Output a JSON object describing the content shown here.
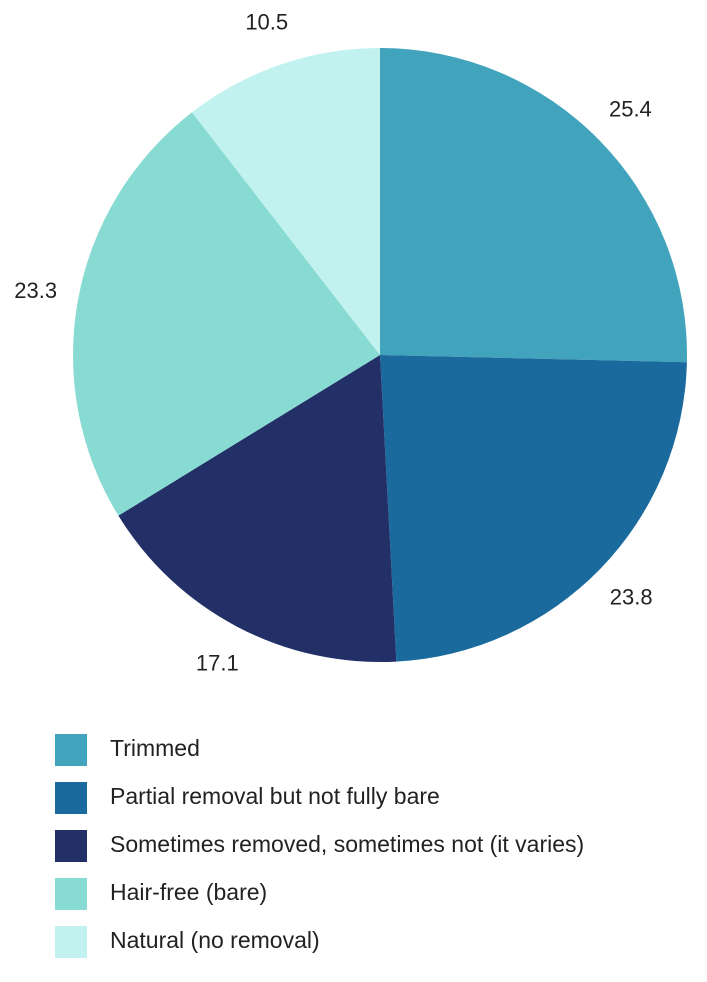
{
  "chart_data": {
    "type": "pie",
    "categories": [
      "Trimmed",
      "Partial removal but not fully bare",
      "Sometimes removed, sometimes not (it varies)",
      "Hair-free (bare)",
      "Natural (no removal)"
    ],
    "values": [
      25.4,
      23.8,
      17.1,
      23.3,
      10.5
    ],
    "colors": [
      "#42a3bd",
      "#1a6a9e",
      "#233068",
      "#87dbd2",
      "#c2f2ef"
    ],
    "legend": "bottom"
  }
}
